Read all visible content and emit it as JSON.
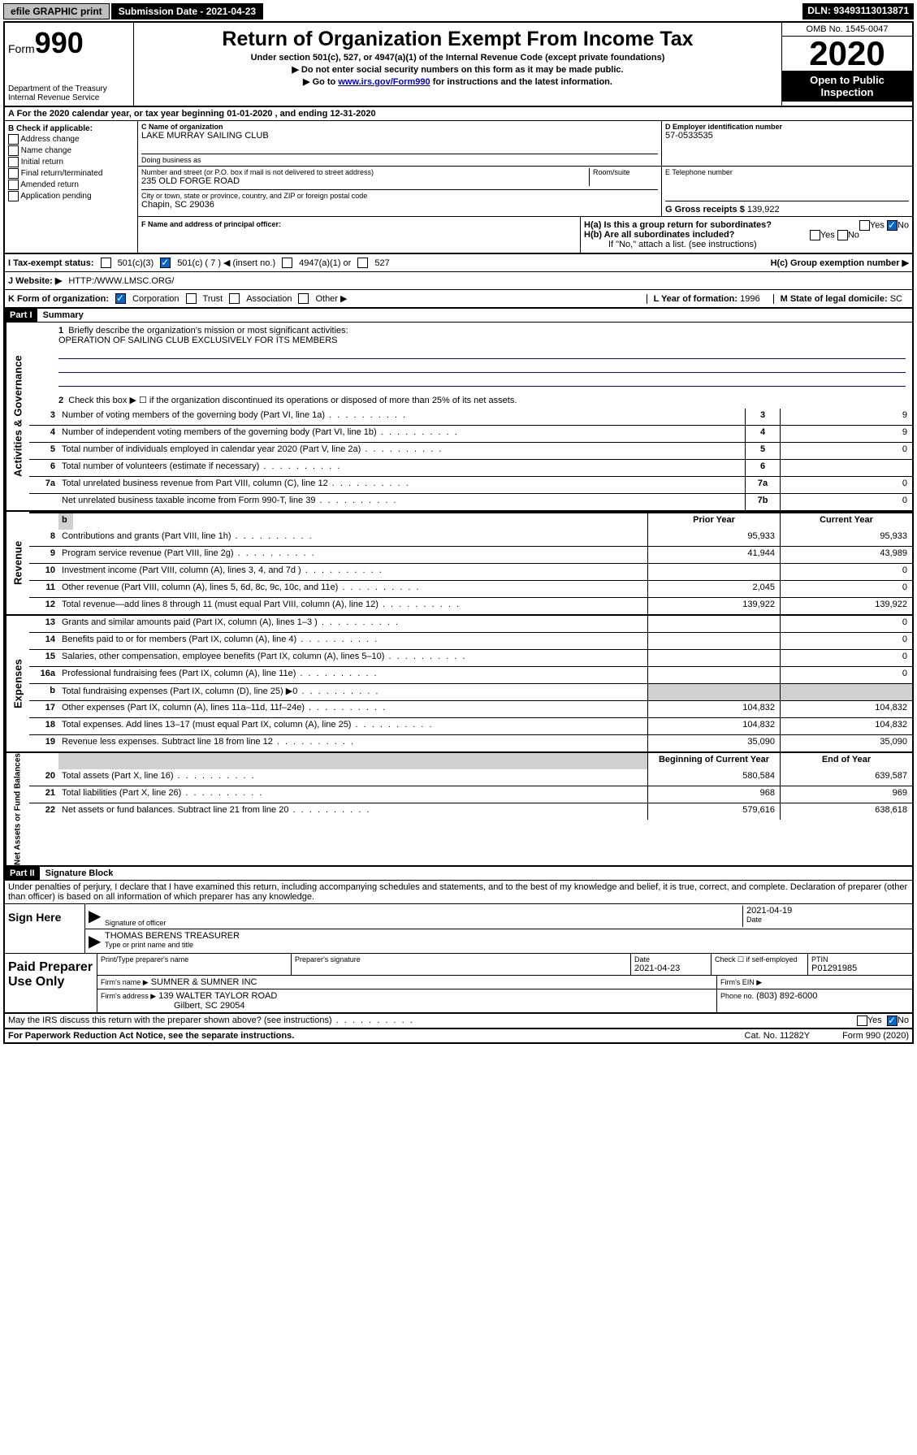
{
  "topbar": {
    "efile": "efile GRAPHIC print",
    "submission_label": "Submission Date - 2021-04-23",
    "dln": "DLN: 93493113013871"
  },
  "header": {
    "form_prefix": "Form",
    "form_num": "990",
    "dept": "Department of the Treasury\nInternal Revenue Service",
    "title": "Return of Organization Exempt From Income Tax",
    "sub1": "Under section 501(c), 527, or 4947(a)(1) of the Internal Revenue Code (except private foundations)",
    "sub2": "▶ Do not enter social security numbers on this form as it may be made public.",
    "sub3_prefix": "▶ Go to ",
    "sub3_link": "www.irs.gov/Form990",
    "sub3_suffix": " for instructions and the latest information.",
    "omb": "OMB No. 1545-0047",
    "year": "2020",
    "open": "Open to Public Inspection"
  },
  "row_a": "A For the 2020 calendar year, or tax year beginning 01-01-2020   , and ending 12-31-2020",
  "box_b": {
    "title": "B Check if applicable:",
    "items": [
      "Address change",
      "Name change",
      "Initial return",
      "Final return/terminated",
      "Amended return",
      "Application pending"
    ]
  },
  "box_c": {
    "label": "C Name of organization",
    "name": "LAKE MURRAY SAILING CLUB",
    "dba_label": "Doing business as",
    "addr_label": "Number and street (or P.O. box if mail is not delivered to street address)",
    "room_label": "Room/suite",
    "addr": "235 OLD FORGE ROAD",
    "city_label": "City or town, state or province, country, and ZIP or foreign postal code",
    "city": "Chapin, SC  29036"
  },
  "box_d": {
    "label": "D Employer identification number",
    "value": "57-0533535"
  },
  "box_e": {
    "label": "E Telephone number"
  },
  "box_g": {
    "label": "G Gross receipts $",
    "value": "139,922"
  },
  "box_f": {
    "label": "F  Name and address of principal officer:"
  },
  "box_h": {
    "a": "H(a)  Is this a group return for subordinates?",
    "b": "H(b)  Are all subordinates included?",
    "b_note": "If \"No,\" attach a list. (see instructions)",
    "c": "H(c)  Group exemption number ▶",
    "yes": "Yes",
    "no": "No"
  },
  "row_i": {
    "label": "I   Tax-exempt status:",
    "opts": [
      "501(c)(3)",
      "501(c) ( 7 ) ◀ (insert no.)",
      "4947(a)(1) or",
      "527"
    ]
  },
  "row_j": {
    "label": "J   Website: ▶",
    "value": "HTTP:/WWW.LMSC.ORG/"
  },
  "row_k": {
    "label": "K Form of organization:",
    "opts": [
      "Corporation",
      "Trust",
      "Association",
      "Other ▶"
    ],
    "l_label": "L Year of formation:",
    "l_val": "1996",
    "m_label": "M State of legal domicile:",
    "m_val": "SC"
  },
  "part1": {
    "bar": "Part I",
    "title": "Summary"
  },
  "summary": {
    "q1": "Briefly describe the organization's mission or most significant activities:",
    "q1_ans": "OPERATION OF SAILING CLUB EXCLUSIVELY FOR ITS MEMBERS",
    "q2": "Check this box ▶ ☐  if the organization discontinued its operations or disposed of more than 25% of its net assets.",
    "lines_gov": [
      {
        "n": "3",
        "d": "Number of voting members of the governing body (Part VI, line 1a)",
        "box": "3",
        "v": "9"
      },
      {
        "n": "4",
        "d": "Number of independent voting members of the governing body (Part VI, line 1b)",
        "box": "4",
        "v": "9"
      },
      {
        "n": "5",
        "d": "Total number of individuals employed in calendar year 2020 (Part V, line 2a)",
        "box": "5",
        "v": "0"
      },
      {
        "n": "6",
        "d": "Total number of volunteers (estimate if necessary)",
        "box": "6",
        "v": ""
      },
      {
        "n": "7a",
        "d": "Total unrelated business revenue from Part VIII, column (C), line 12",
        "box": "7a",
        "v": "0"
      },
      {
        "n": "",
        "d": "Net unrelated business taxable income from Form 990-T, line 39",
        "box": "7b",
        "v": "0"
      }
    ],
    "col_hdr": {
      "prior": "Prior Year",
      "current": "Current Year",
      "boc": "Beginning of Current Year",
      "eoy": "End of Year"
    },
    "lines_rev": [
      {
        "n": "8",
        "d": "Contributions and grants (Part VIII, line 1h)",
        "p": "95,933",
        "c": "95,933"
      },
      {
        "n": "9",
        "d": "Program service revenue (Part VIII, line 2g)",
        "p": "41,944",
        "c": "43,989"
      },
      {
        "n": "10",
        "d": "Investment income (Part VIII, column (A), lines 3, 4, and 7d )",
        "p": "",
        "c": "0"
      },
      {
        "n": "11",
        "d": "Other revenue (Part VIII, column (A), lines 5, 6d, 8c, 9c, 10c, and 11e)",
        "p": "2,045",
        "c": "0"
      },
      {
        "n": "12",
        "d": "Total revenue—add lines 8 through 11 (must equal Part VIII, column (A), line 12)",
        "p": "139,922",
        "c": "139,922"
      }
    ],
    "lines_exp": [
      {
        "n": "13",
        "d": "Grants and similar amounts paid (Part IX, column (A), lines 1–3 )",
        "p": "",
        "c": "0"
      },
      {
        "n": "14",
        "d": "Benefits paid to or for members (Part IX, column (A), line 4)",
        "p": "",
        "c": "0"
      },
      {
        "n": "15",
        "d": "Salaries, other compensation, employee benefits (Part IX, column (A), lines 5–10)",
        "p": "",
        "c": "0"
      },
      {
        "n": "16a",
        "d": "Professional fundraising fees (Part IX, column (A), line 11e)",
        "p": "",
        "c": "0"
      },
      {
        "n": "b",
        "d": "Total fundraising expenses (Part IX, column (D), line 25) ▶0",
        "p": "GRAY",
        "c": "GRAY"
      },
      {
        "n": "17",
        "d": "Other expenses (Part IX, column (A), lines 11a–11d, 11f–24e)",
        "p": "104,832",
        "c": "104,832"
      },
      {
        "n": "18",
        "d": "Total expenses. Add lines 13–17 (must equal Part IX, column (A), line 25)",
        "p": "104,832",
        "c": "104,832"
      },
      {
        "n": "19",
        "d": "Revenue less expenses. Subtract line 18 from line 12",
        "p": "35,090",
        "c": "35,090"
      }
    ],
    "lines_net": [
      {
        "n": "20",
        "d": "Total assets (Part X, line 16)",
        "p": "580,584",
        "c": "639,587"
      },
      {
        "n": "21",
        "d": "Total liabilities (Part X, line 26)",
        "p": "968",
        "c": "969"
      },
      {
        "n": "22",
        "d": "Net assets or fund balances. Subtract line 21 from line 20",
        "p": "579,616",
        "c": "638,618"
      }
    ]
  },
  "vert_labels": {
    "gov": "Activities & Governance",
    "rev": "Revenue",
    "exp": "Expenses",
    "net": "Net Assets or Fund Balances"
  },
  "part2": {
    "bar": "Part II",
    "title": "Signature Block",
    "decl": "Under penalties of perjury, I declare that I have examined this return, including accompanying schedules and statements, and to the best of my knowledge and belief, it is true, correct, and complete. Declaration of preparer (other than officer) is based on all information of which preparer has any knowledge."
  },
  "sign": {
    "here": "Sign Here",
    "sig_officer": "Signature of officer",
    "date": "2021-04-19",
    "date_label": "Date",
    "name": "THOMAS BERENS TREASURER",
    "name_label": "Type or print name and title"
  },
  "paid": {
    "title": "Paid Preparer Use Only",
    "h1": "Print/Type preparer's name",
    "h2": "Preparer's signature",
    "h3": "Date",
    "h3v": "2021-04-23",
    "h4": "Check ☐ if self-employed",
    "h5": "PTIN",
    "h5v": "P01291985",
    "firm_label": "Firm's name    ▶",
    "firm": "SUMNER & SUMNER INC",
    "ein_label": "Firm's EIN ▶",
    "addr_label": "Firm's address ▶",
    "addr1": "139 WALTER TAYLOR ROAD",
    "addr2": "Gilbert, SC  29054",
    "phone_label": "Phone no.",
    "phone": "(803) 892-6000"
  },
  "footer": {
    "discuss": "May the IRS discuss this return with the preparer shown above? (see instructions)",
    "pra": "For Paperwork Reduction Act Notice, see the separate instructions.",
    "cat": "Cat. No. 11282Y",
    "form": "Form 990 (2020)",
    "yes": "Yes",
    "no": "No"
  }
}
